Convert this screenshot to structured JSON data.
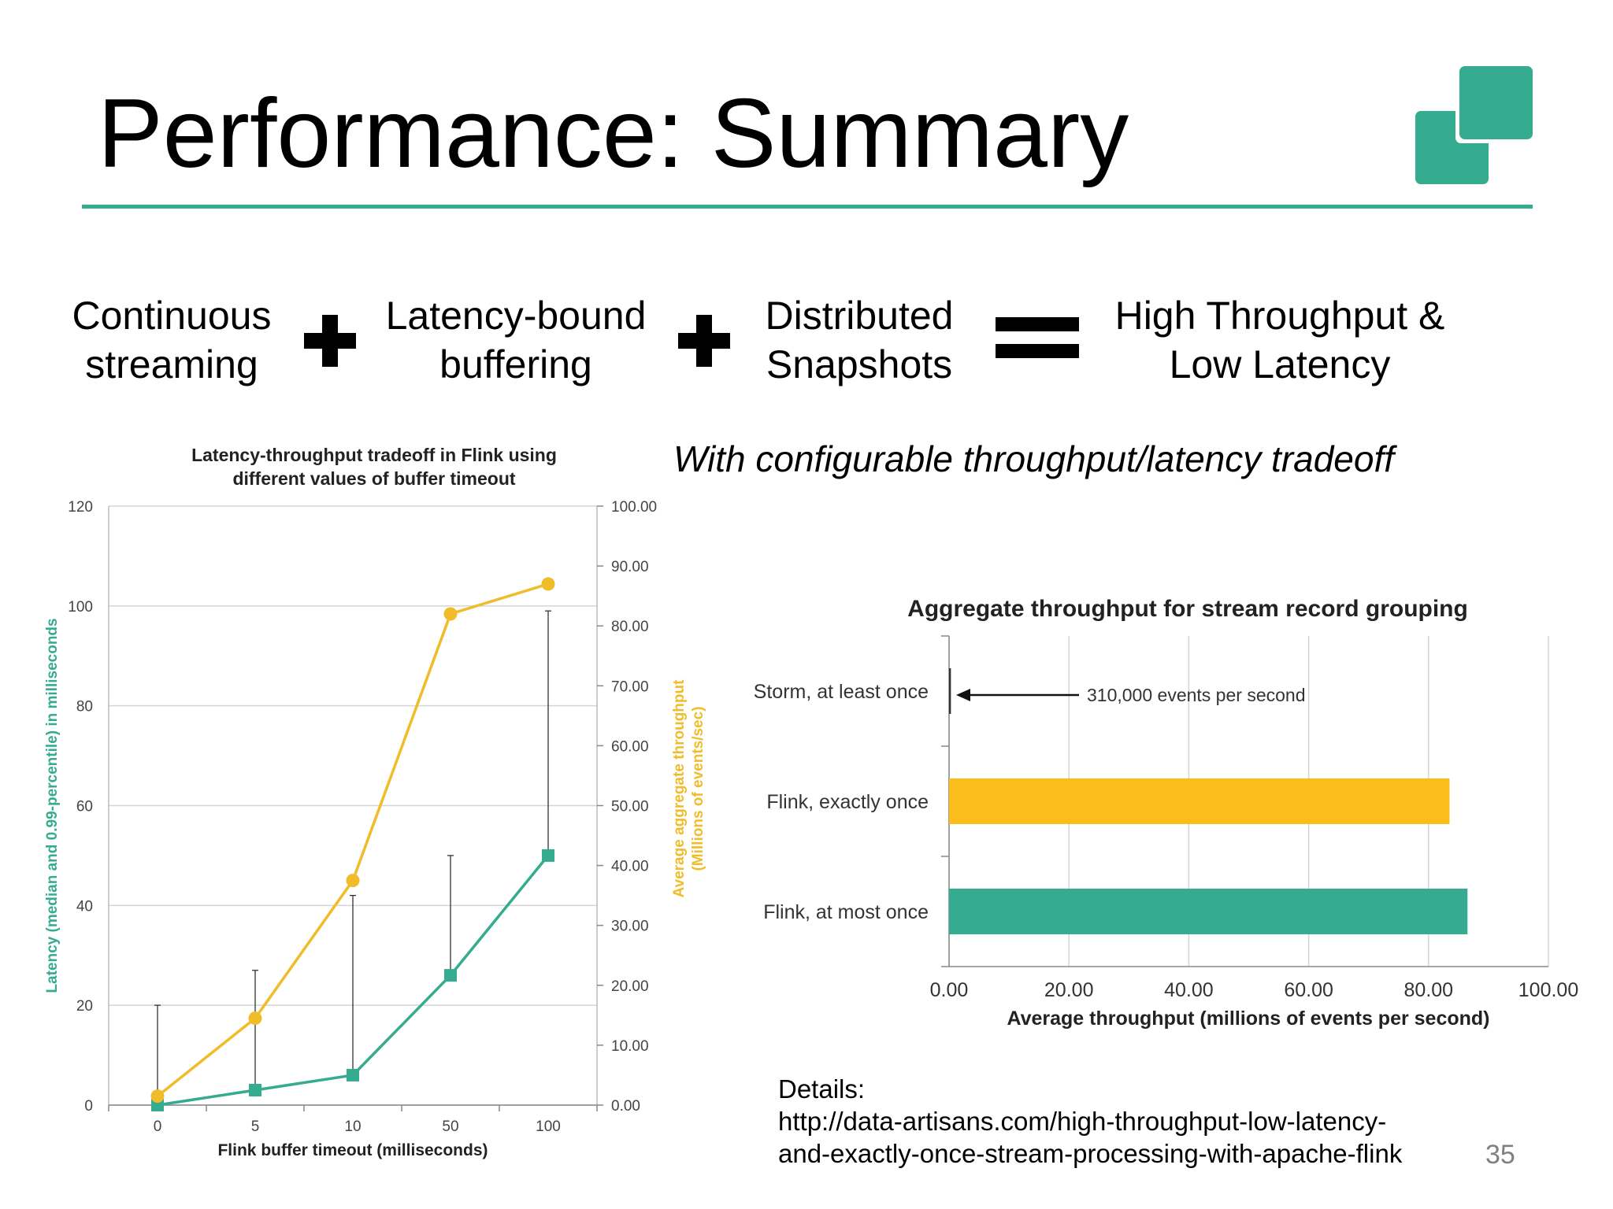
{
  "slide": {
    "title": "Performance: Summary",
    "page_number": "35",
    "colors": {
      "accent": "#35ab8f",
      "yellow": "#f0bc2a",
      "bar_yellow": "#fbbd1b",
      "bar_green": "#35ab8f"
    }
  },
  "equation": {
    "term1": [
      "Continuous",
      "streaming"
    ],
    "term2": [
      "Latency-bound",
      "buffering"
    ],
    "term3": [
      "Distributed",
      "Snapshots"
    ],
    "result": [
      "High Throughput &",
      "Low Latency"
    ]
  },
  "subtitle": "With configurable throughput/latency tradeoff",
  "details": {
    "label": "Details:",
    "url_line1": "http://data-artisans.com/high-throughput-low-latency-",
    "url_line2": "and-exactly-once-stream-processing-with-apache-flink"
  },
  "chart_data": [
    {
      "type": "line",
      "title": [
        "Latency-throughput tradeoff in Flink using",
        "different values of buffer timeout"
      ],
      "xlabel": "Flink buffer timeout (milliseconds)",
      "ylabel": "Latency (median and 0.99-percentile) in milliseconds",
      "y2label": [
        "Average aggregate throughput",
        "(Millions of events/sec)"
      ],
      "categories": [
        "0",
        "5",
        "10",
        "50",
        "100"
      ],
      "ylim": [
        0,
        120
      ],
      "y_ticks": [
        "0",
        "20",
        "40",
        "60",
        "80",
        "100",
        "120"
      ],
      "y2lim": [
        0,
        100
      ],
      "y2_ticks": [
        "0.00",
        "10.00",
        "20.00",
        "30.00",
        "40.00",
        "50.00",
        "60.00",
        "70.00",
        "80.00",
        "90.00",
        "100.00"
      ],
      "grid": true,
      "series": [
        {
          "axis": "left",
          "color": "#35ab8f",
          "marker": "square",
          "values": [
            0,
            3,
            6,
            26,
            50
          ],
          "error_high": [
            20,
            27,
            42,
            50,
            99
          ]
        },
        {
          "axis": "right",
          "color": "#f0bc2a",
          "marker": "circle",
          "values": [
            1.5,
            14.5,
            37.5,
            82,
            87
          ]
        }
      ]
    },
    {
      "type": "bar",
      "orientation": "horizontal",
      "title": "Aggregate throughput for stream record grouping",
      "xlabel": "Average throughput (millions of events per second)",
      "categories": [
        "Storm, at least once",
        "Flink, exactly once",
        "Flink, at most once"
      ],
      "values": [
        0.31,
        83.5,
        86.5
      ],
      "bar_colors": [
        "#333333",
        "#fbbd1b",
        "#35ab8f"
      ],
      "xlim": [
        0,
        100
      ],
      "x_ticks": [
        "0.00",
        "20.00",
        "40.00",
        "60.00",
        "80.00",
        "100.00"
      ],
      "annotation": "310,000 events per second",
      "grid": true
    }
  ]
}
